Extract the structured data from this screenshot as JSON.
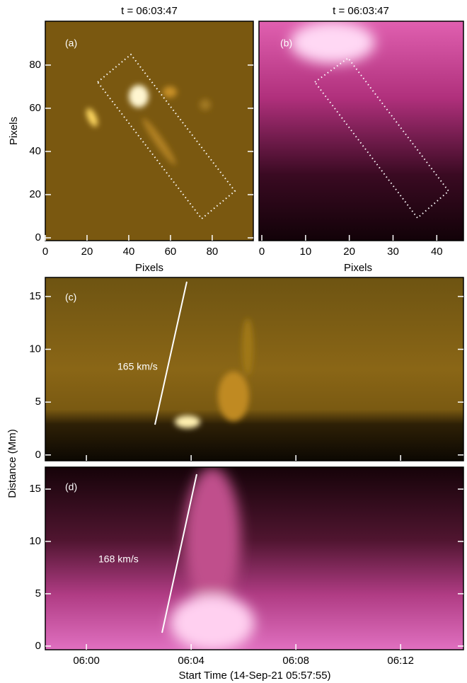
{
  "chart_data": [
    {
      "type": "image",
      "title": "t = 06:03:47",
      "label": "(a)",
      "xlabel": "Pixels",
      "ylabel": "Pixels",
      "xlim": [
        0,
        99.7
      ],
      "ylim": [
        -1.3,
        100.3
      ],
      "xticks": [
        0,
        20,
        40,
        60,
        80
      ],
      "yticks": [
        0,
        20,
        40,
        60,
        80
      ]
    },
    {
      "type": "image",
      "title": "t = 06:03:47",
      "label": "(b)",
      "xlabel": "Pixels",
      "xlim": [
        -0.65,
        46.1
      ],
      "ylim": [
        -1.3,
        100.3
      ],
      "xticks": [
        0,
        10,
        20,
        30,
        40
      ]
    },
    {
      "type": "image",
      "label": "(c)",
      "annotation": "165 km/s",
      "ylabel": "Distance (Mm)",
      "ylim": [
        -0.55,
        16.8
      ],
      "yticks": [
        0,
        5,
        10,
        15
      ]
    },
    {
      "type": "image",
      "label": "(d)",
      "annotation": "168 km/s",
      "xlabel": "Start Time (14-Sep-21 05:57:55)",
      "xlim": [
        -1.57,
        14.4
      ],
      "ylim": [
        -0.35,
        17.1
      ],
      "yticks": [
        0,
        5,
        10,
        15
      ],
      "xticks": [
        {
          "value": 0,
          "label": "06:00"
        },
        {
          "value": 4,
          "label": "06:04"
        },
        {
          "value": 8,
          "label": "06:08"
        },
        {
          "value": 12,
          "label": "06:12"
        }
      ]
    }
  ]
}
